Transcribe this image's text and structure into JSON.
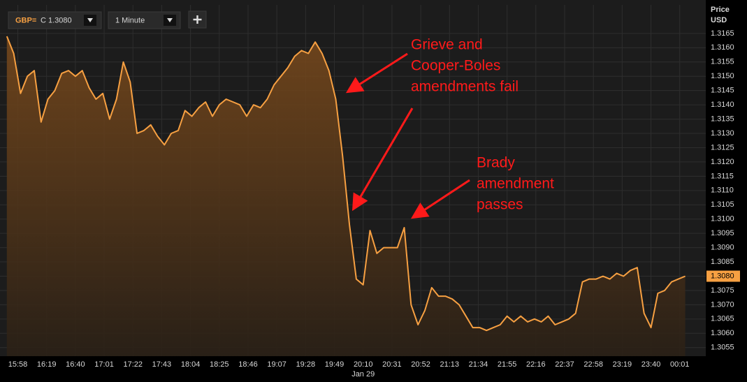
{
  "toolbar": {
    "symbol": "GBP=",
    "quote": "C 1.3080",
    "interval": "1 Minute"
  },
  "chart_data": {
    "type": "area",
    "axis_title": [
      "Price",
      "USD"
    ],
    "date_label": "Jan 29",
    "x": [
      "15:50",
      "15:55",
      "16:00",
      "16:05",
      "16:10",
      "16:15",
      "16:20",
      "16:25",
      "16:30",
      "16:35",
      "16:40",
      "16:45",
      "16:50",
      "16:55",
      "17:00",
      "17:05",
      "17:10",
      "17:15",
      "17:20",
      "17:25",
      "17:30",
      "17:35",
      "17:40",
      "17:45",
      "17:50",
      "17:55",
      "18:00",
      "18:05",
      "18:10",
      "18:15",
      "18:20",
      "18:25",
      "18:30",
      "18:35",
      "18:40",
      "18:45",
      "18:50",
      "18:55",
      "19:00",
      "19:05",
      "19:10",
      "19:15",
      "19:20",
      "19:25",
      "19:30",
      "19:35",
      "19:40",
      "19:45",
      "19:50",
      "19:55",
      "20:00",
      "20:05",
      "20:10",
      "20:15",
      "20:20",
      "20:25",
      "20:30",
      "20:35",
      "20:40",
      "20:45",
      "20:50",
      "20:55",
      "21:00",
      "21:05",
      "21:10",
      "21:15",
      "21:20",
      "21:25",
      "21:30",
      "21:35",
      "21:40",
      "21:45",
      "21:50",
      "21:55",
      "22:00",
      "22:05",
      "22:10",
      "22:15",
      "22:20",
      "22:25",
      "22:30",
      "22:35",
      "22:40",
      "22:45",
      "22:50",
      "22:55",
      "23:00",
      "23:05",
      "23:10",
      "23:15",
      "23:20",
      "23:25",
      "23:30",
      "23:35",
      "23:40",
      "23:45",
      "23:50",
      "23:55",
      "00:00",
      "00:05"
    ],
    "values": [
      1.3164,
      1.3158,
      1.3144,
      1.315,
      1.3152,
      1.3134,
      1.3142,
      1.3145,
      1.3151,
      1.3152,
      1.315,
      1.3152,
      1.3146,
      1.3142,
      1.3144,
      1.3135,
      1.3142,
      1.3155,
      1.3148,
      1.313,
      1.3131,
      1.3133,
      1.3129,
      1.3126,
      1.313,
      1.3131,
      1.3138,
      1.3136,
      1.3139,
      1.3141,
      1.3136,
      1.314,
      1.3142,
      1.3141,
      1.314,
      1.3136,
      1.314,
      1.3139,
      1.3142,
      1.3147,
      1.315,
      1.3153,
      1.3157,
      1.3159,
      1.3158,
      1.3162,
      1.3158,
      1.3152,
      1.3142,
      1.3122,
      1.3098,
      1.3079,
      1.3077,
      1.3096,
      1.3088,
      1.309,
      1.309,
      1.309,
      1.3097,
      1.307,
      1.3063,
      1.3068,
      1.3076,
      1.3073,
      1.3073,
      1.3072,
      1.307,
      1.3066,
      1.3062,
      1.3062,
      1.3061,
      1.3062,
      1.3063,
      1.3066,
      1.3064,
      1.3066,
      1.3064,
      1.3065,
      1.3064,
      1.3066,
      1.3063,
      1.3064,
      1.3065,
      1.3067,
      1.3078,
      1.3079,
      1.3079,
      1.308,
      1.3079,
      1.3081,
      1.308,
      1.3082,
      1.3083,
      1.3067,
      1.3062,
      1.3074,
      1.3075,
      1.3078,
      1.3079,
      1.308
    ],
    "color": "#f7a042",
    "xlim": [
      "15:45",
      "00:20"
    ],
    "xticks": [
      "15:58",
      "16:19",
      "16:40",
      "17:01",
      "17:22",
      "17:43",
      "18:04",
      "18:25",
      "18:46",
      "19:07",
      "19:28",
      "19:49",
      "20:10",
      "20:31",
      "20:52",
      "21:13",
      "21:34",
      "21:55",
      "22:16",
      "22:37",
      "22:58",
      "23:19",
      "23:40",
      "00:01"
    ],
    "ylim": [
      1.3052,
      1.3175
    ],
    "yticks": [
      1.3055,
      {
        "value": 1.306,
        "label": "1.3060"
      },
      1.3065,
      {
        "value": 1.307,
        "label": "1.3070"
      },
      1.3075,
      {
        "value": 1.308,
        "label": "1.3080"
      },
      1.3085,
      {
        "value": 1.309,
        "label": "1.3090"
      },
      1.3095,
      {
        "value": 1.31,
        "label": "1.3100"
      },
      1.3105,
      {
        "value": 1.311,
        "label": "1.3110"
      },
      1.3115,
      {
        "value": 1.312,
        "label": "1.3120"
      },
      1.3125,
      {
        "value": 1.313,
        "label": "1.3130"
      },
      1.3135,
      {
        "value": 1.314,
        "label": "1.3140"
      },
      1.3145,
      {
        "value": 1.315,
        "label": "1.3150"
      },
      1.3155,
      {
        "value": 1.316,
        "label": "1.3160"
      },
      1.3165
    ],
    "grid": true,
    "price_tag": {
      "value": 1.308,
      "label": "1.3080"
    },
    "annotations": [
      {
        "lines": [
          "Grieve and",
          "Cooper-Boles",
          "amendments fail"
        ],
        "color": "#ff1a1a"
      },
      {
        "lines": [
          "Brady",
          "amendment",
          "passes"
        ],
        "color": "#ff1a1a"
      }
    ]
  }
}
